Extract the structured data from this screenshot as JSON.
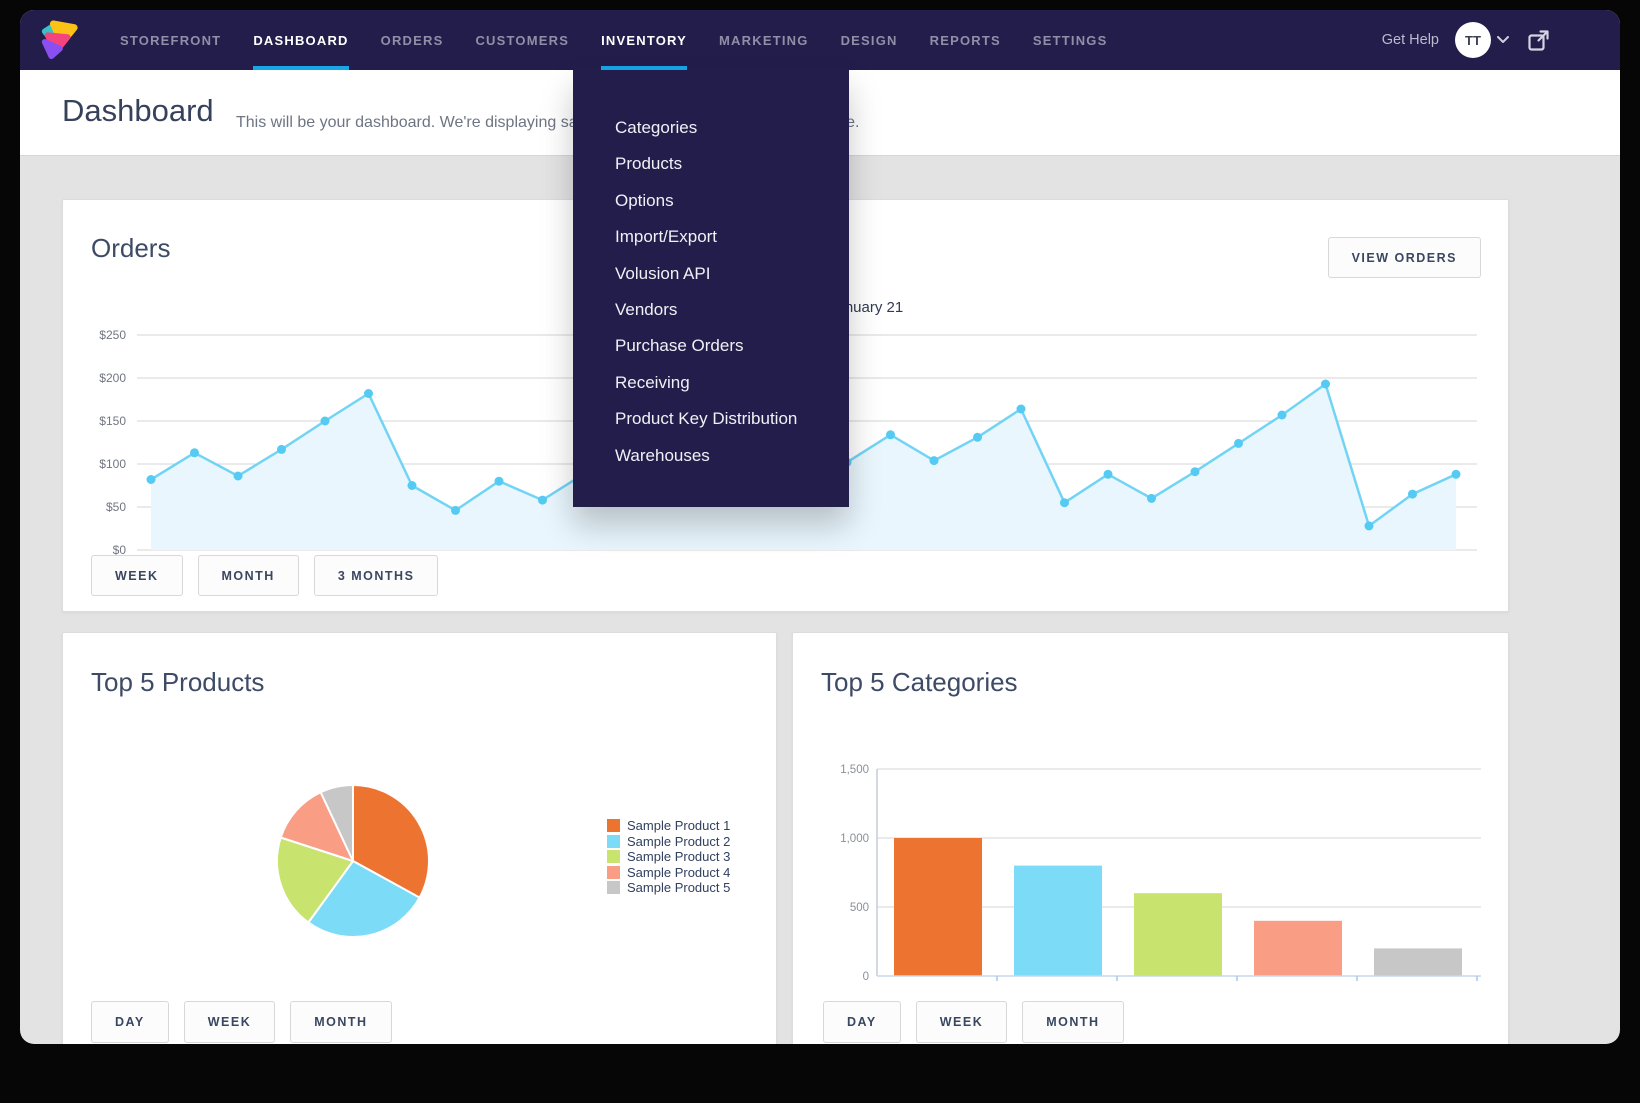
{
  "colors": {
    "accent_blue": "#19a6e9",
    "topbar_bg": "#231d4b",
    "palette_orange": "#ed7331",
    "palette_cyan": "#7cdbf7",
    "palette_lime": "#c8e36e",
    "palette_salmon": "#f99e85",
    "palette_gray": "#c7c7c7"
  },
  "nav": {
    "items": [
      {
        "label": "STOREFRONT",
        "active": false
      },
      {
        "label": "DASHBOARD",
        "active": true
      },
      {
        "label": "ORDERS",
        "active": false
      },
      {
        "label": "CUSTOMERS",
        "active": false
      },
      {
        "label": "INVENTORY",
        "active": true
      },
      {
        "label": "MARKETING",
        "active": false
      },
      {
        "label": "DESIGN",
        "active": false
      },
      {
        "label": "REPORTS",
        "active": false
      },
      {
        "label": "SETTINGS",
        "active": false
      }
    ],
    "get_help": "Get Help",
    "avatar_initials": "TT"
  },
  "inventory_menu": {
    "items": [
      "Categories",
      "Products",
      "Options",
      "Import/Export",
      "Volusion API",
      "Vendors",
      "Purchase Orders",
      "Receiving",
      "Product Key Distribution",
      "Warehouses"
    ]
  },
  "header": {
    "title": "Dashboard",
    "subtitle": "This will be your dashboard. We're displaying sample data until you make your first sale."
  },
  "orders_card": {
    "title": "Orders",
    "view_orders_label": "VIEW ORDERS",
    "tooltip_date": "January 21",
    "range_buttons": [
      "WEEK",
      "MONTH",
      "3 MONTHS"
    ]
  },
  "products_card": {
    "title": "Top 5 Products",
    "range_buttons": [
      "DAY",
      "WEEK",
      "MONTH"
    ]
  },
  "categories_card": {
    "title": "Top 5 Categories",
    "range_buttons": [
      "DAY",
      "WEEK",
      "MONTH"
    ]
  },
  "chart_data": [
    {
      "id": "orders-over-time",
      "type": "line",
      "title": "Orders",
      "y_ticks": [
        "$250",
        "$200",
        "$150",
        "$100",
        "$50",
        "$0"
      ],
      "ylim": [
        0,
        250
      ],
      "grid": true,
      "annotation": "January 21",
      "values": [
        82,
        113,
        86,
        117,
        150,
        182,
        75,
        46,
        80,
        58,
        90,
        120,
        150,
        110,
        85,
        70,
        102,
        134,
        104,
        131,
        164,
        55,
        88,
        60,
        91,
        124,
        157,
        193,
        28,
        65,
        88
      ],
      "line_color": "#72d4f5",
      "point_color": "#55caf3",
      "area_fill": "#e9f6fd"
    },
    {
      "id": "top-5-products",
      "type": "pie",
      "title": "Top 5 Products",
      "legend": [
        "Sample Product 1",
        "Sample Product 2",
        "Sample Product 3",
        "Sample Product 4",
        "Sample Product 5"
      ],
      "values_pct": [
        33,
        27,
        20,
        13,
        7
      ],
      "colors": [
        "#ed7331",
        "#7cdbf7",
        "#c8e36e",
        "#f99e85",
        "#c7c7c7"
      ],
      "legend_position": "right"
    },
    {
      "id": "top-5-categories",
      "type": "bar",
      "title": "Top 5 Categories",
      "values": [
        1000,
        800,
        600,
        400,
        200
      ],
      "y_ticks": [
        "1,500",
        "1,000",
        "500",
        "0"
      ],
      "ylim": [
        0,
        1500
      ],
      "grid": true,
      "colors": [
        "#ed7331",
        "#7cdbf7",
        "#c8e36e",
        "#f99e85",
        "#c7c7c7"
      ]
    }
  ]
}
